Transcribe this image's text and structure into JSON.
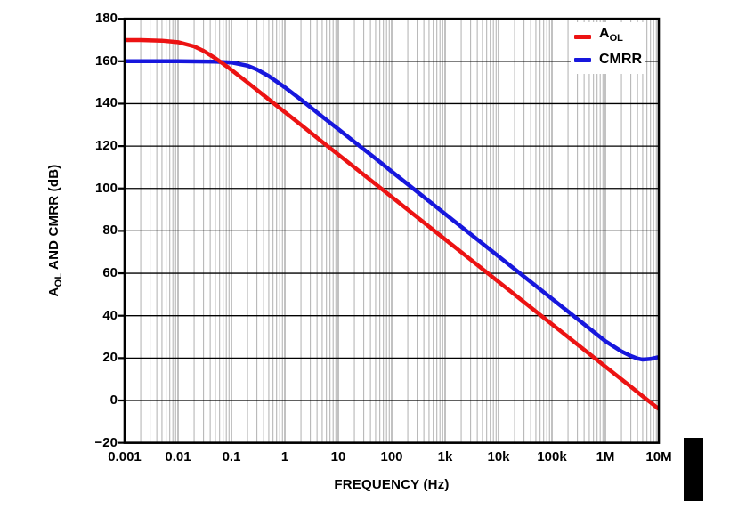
{
  "chart": {
    "x_title": "FREQUENCY (Hz)",
    "y_title_parts": {
      "prefix": "A",
      "sub": "OL",
      "rest": " AND CMRR (dB)"
    },
    "legend": {
      "aol_main": "A",
      "aol_sub": "OL",
      "cmrr_label": "CMRR"
    }
  },
  "chart_data": {
    "type": "line",
    "title": "",
    "xlabel": "FREQUENCY (Hz)",
    "ylabel": "AOL AND CMRR (dB)",
    "x_axis": {
      "scale": "log",
      "min": 0.001,
      "max": 10000000,
      "ticks": [
        {
          "value": 0.001,
          "label": "0.001"
        },
        {
          "value": 0.01,
          "label": "0.01"
        },
        {
          "value": 0.1,
          "label": "0.1"
        },
        {
          "value": 1,
          "label": "1"
        },
        {
          "value": 10,
          "label": "10"
        },
        {
          "value": 100,
          "label": "100"
        },
        {
          "value": 1000,
          "label": "1k"
        },
        {
          "value": 10000,
          "label": "10k"
        },
        {
          "value": 100000,
          "label": "100k"
        },
        {
          "value": 1000000,
          "label": "1M"
        },
        {
          "value": 10000000,
          "label": "10M"
        }
      ]
    },
    "y_axis": {
      "min": -20,
      "max": 180,
      "tick_step": 20,
      "ticks": [
        {
          "value": 180,
          "label": "180"
        },
        {
          "value": 160,
          "label": "160"
        },
        {
          "value": 140,
          "label": "140"
        },
        {
          "value": 120,
          "label": "120"
        },
        {
          "value": 100,
          "label": "100"
        },
        {
          "value": 80,
          "label": "80"
        },
        {
          "value": 60,
          "label": "60"
        },
        {
          "value": 40,
          "label": "40"
        },
        {
          "value": 20,
          "label": "20"
        },
        {
          "value": 0,
          "label": "0"
        },
        {
          "value": -20,
          "label": "−20"
        }
      ]
    },
    "grid": {
      "horizontal": "major lines every 20 dB, black",
      "vertical": "log minor lines (2-9) each decade, gray",
      "minor_color": "#b0b0b0",
      "decade_color": "#9a9a9a",
      "major_color": "#000000"
    },
    "legend_position": "top-right-inside",
    "series": [
      {
        "name": "AOL",
        "color": "#ec1313",
        "description": "Open-loop gain: 170 dB flat, dominant pole ~0.02 Hz, -20 dB/decade, ~-4 dB at 10 MHz",
        "points": [
          [
            0.001,
            170
          ],
          [
            0.002,
            170
          ],
          [
            0.005,
            169.7
          ],
          [
            0.01,
            169
          ],
          [
            0.02,
            167
          ],
          [
            0.03,
            164.9
          ],
          [
            0.05,
            161.4
          ],
          [
            0.07,
            158.8
          ],
          [
            0.1,
            155.9
          ],
          [
            0.2,
            150
          ],
          [
            0.5,
            142
          ],
          [
            1,
            136
          ],
          [
            2,
            130
          ],
          [
            5,
            122
          ],
          [
            10,
            116
          ],
          [
            100,
            96
          ],
          [
            1000,
            76
          ],
          [
            10000,
            56
          ],
          [
            100000,
            36
          ],
          [
            1000000,
            16
          ],
          [
            3000000,
            6.5
          ],
          [
            5000000,
            2
          ],
          [
            7000000,
            -0.9
          ],
          [
            10000000,
            -4
          ]
        ]
      },
      {
        "name": "CMRR",
        "color": "#1717dd",
        "description": "CMRR: 160 dB flat, corner ~0.25 Hz, -20 dB/decade, dip ~19 dB near 5 MHz then rises to ~20.5 dB",
        "points": [
          [
            0.001,
            160
          ],
          [
            0.01,
            160
          ],
          [
            0.05,
            159.8
          ],
          [
            0.1,
            159.4
          ],
          [
            0.2,
            157.9
          ],
          [
            0.3,
            156.1
          ],
          [
            0.5,
            153
          ],
          [
            1,
            147.7
          ],
          [
            2,
            141.9
          ],
          [
            5,
            133.9
          ],
          [
            10,
            128
          ],
          [
            20,
            122
          ],
          [
            50,
            114.1
          ],
          [
            100,
            108
          ],
          [
            1000,
            88
          ],
          [
            10000,
            68
          ],
          [
            100000,
            48
          ],
          [
            1000000,
            28
          ],
          [
            2000000,
            23.2
          ],
          [
            3000000,
            21
          ],
          [
            4000000,
            19.8
          ],
          [
            5000000,
            19.3
          ],
          [
            7000000,
            19.6
          ],
          [
            10000000,
            20.5
          ]
        ]
      }
    ]
  }
}
